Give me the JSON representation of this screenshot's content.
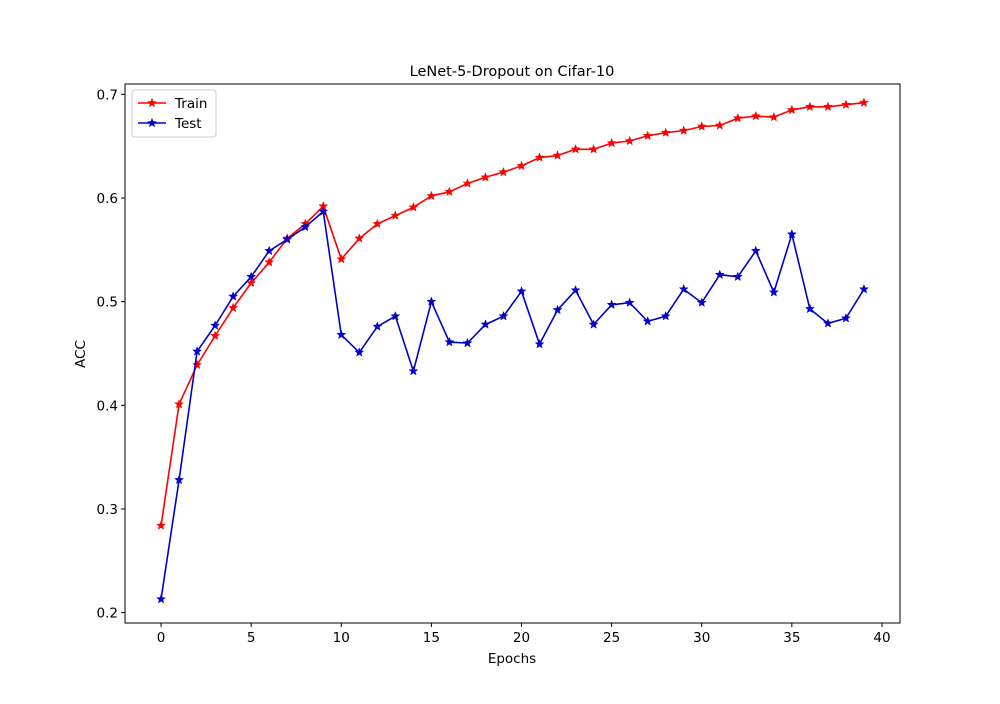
{
  "chart_data": {
    "type": "line",
    "title": "LeNet-5-Dropout on Cifar-10",
    "xlabel": "Epochs",
    "ylabel": "ACC",
    "xlim": [
      -2,
      41
    ],
    "ylim": [
      0.19,
      0.71
    ],
    "xticks": [
      0,
      5,
      10,
      15,
      20,
      25,
      30,
      35,
      40
    ],
    "yticks": [
      0.2,
      0.3,
      0.4,
      0.5,
      0.6,
      0.7
    ],
    "grid": false,
    "legend_position": "top-left",
    "x": [
      0,
      1,
      2,
      3,
      4,
      5,
      6,
      7,
      8,
      9,
      10,
      11,
      12,
      13,
      14,
      15,
      16,
      17,
      18,
      19,
      20,
      21,
      22,
      23,
      24,
      25,
      26,
      27,
      28,
      29,
      30,
      31,
      32,
      33,
      34,
      35,
      36,
      37,
      38,
      39
    ],
    "series": [
      {
        "name": "Train",
        "color": "#ff0000",
        "marker": "star",
        "values": [
          0.284,
          0.401,
          0.439,
          0.467,
          0.494,
          0.518,
          0.538,
          0.561,
          0.575,
          0.592,
          0.541,
          0.561,
          0.575,
          0.583,
          0.591,
          0.602,
          0.606,
          0.614,
          0.62,
          0.625,
          0.631,
          0.639,
          0.641,
          0.647,
          0.647,
          0.653,
          0.655,
          0.66,
          0.663,
          0.665,
          0.669,
          0.67,
          0.677,
          0.679,
          0.678,
          0.685,
          0.688,
          0.688,
          0.69,
          0.692
        ]
      },
      {
        "name": "Test",
        "color": "#0000cc",
        "marker": "star",
        "values": [
          0.213,
          0.328,
          0.452,
          0.477,
          0.505,
          0.524,
          0.549,
          0.56,
          0.572,
          0.587,
          0.468,
          0.451,
          0.476,
          0.486,
          0.433,
          0.5,
          0.461,
          0.46,
          0.478,
          0.486,
          0.51,
          0.459,
          0.492,
          0.511,
          0.478,
          0.497,
          0.499,
          0.481,
          0.486,
          0.512,
          0.499,
          0.526,
          0.524,
          0.549,
          0.509,
          0.565,
          0.493,
          0.479,
          0.484,
          0.512
        ]
      }
    ]
  }
}
